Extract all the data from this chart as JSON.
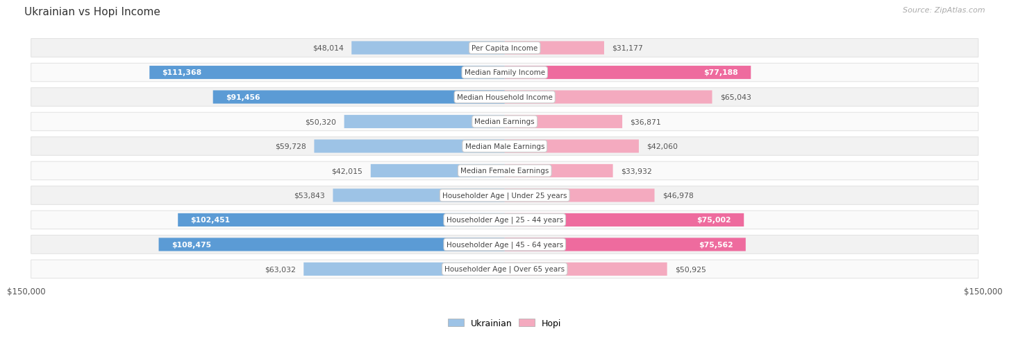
{
  "title": "Ukrainian vs Hopi Income",
  "source": "Source: ZipAtlas.com",
  "max_value": 150000,
  "categories": [
    "Per Capita Income",
    "Median Family Income",
    "Median Household Income",
    "Median Earnings",
    "Median Male Earnings",
    "Median Female Earnings",
    "Householder Age | Under 25 years",
    "Householder Age | 25 - 44 years",
    "Householder Age | 45 - 64 years",
    "Householder Age | Over 65 years"
  ],
  "ukrainian_values": [
    48014,
    111368,
    91456,
    50320,
    59728,
    42015,
    53843,
    102451,
    108475,
    63032
  ],
  "hopi_values": [
    31177,
    77188,
    65043,
    36871,
    42060,
    33932,
    46978,
    75002,
    75562,
    50925
  ],
  "ukrainian_labels": [
    "$48,014",
    "$111,368",
    "$91,456",
    "$50,320",
    "$59,728",
    "$42,015",
    "$53,843",
    "$102,451",
    "$108,475",
    "$63,032"
  ],
  "hopi_labels": [
    "$31,177",
    "$77,188",
    "$65,043",
    "$36,871",
    "$42,060",
    "$33,932",
    "$46,978",
    "$75,002",
    "$75,562",
    "$50,925"
  ],
  "ukr_dark_color": "#5B9BD5",
  "ukr_light_color": "#9DC3E6",
  "hopi_dark_color": "#EE6B9E",
  "hopi_light_color": "#F4AABF",
  "row_bg_even": "#F2F2F2",
  "row_bg_odd": "#FAFAFA",
  "row_border_color": "#DDDDDD",
  "dark_threshold": 75000
}
